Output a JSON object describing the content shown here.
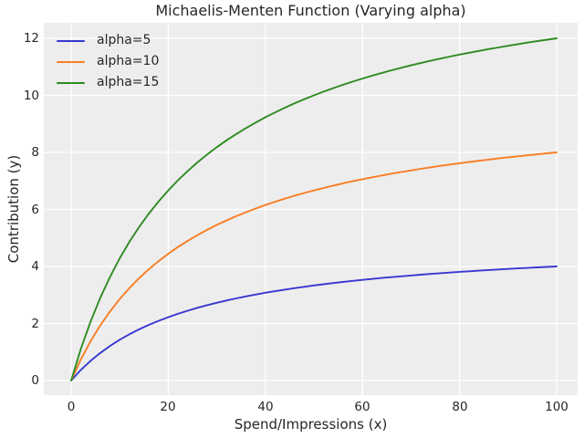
{
  "chart_data": {
    "type": "line",
    "title": "Michaelis-Menten Function (Varying alpha)",
    "xlabel": "Spend/Impressions (x)",
    "ylabel": "Contribution (y)",
    "xlim": [
      -5.64,
      104.32
    ],
    "ylim": [
      -0.512,
      12.544
    ],
    "xticks": [
      0,
      20,
      40,
      60,
      80,
      100
    ],
    "yticks": [
      0,
      2,
      4,
      6,
      8,
      10,
      12
    ],
    "grid": true,
    "legend_position": "upper left",
    "legend_frame": false,
    "style": {
      "axes_background": "#ededed",
      "grid_color": "#ffffff",
      "text_color": "#262626",
      "figure_background": "#ffffff"
    },
    "x": [
      0,
      2,
      4,
      6,
      8,
      10,
      12,
      14,
      16,
      18,
      20,
      22,
      24,
      26,
      28,
      30,
      32,
      34,
      36,
      38,
      40,
      42,
      44,
      46,
      48,
      50,
      52,
      54,
      56,
      58,
      60,
      62,
      64,
      66,
      68,
      70,
      72,
      74,
      76,
      78,
      80,
      82,
      84,
      86,
      88,
      90,
      92,
      94,
      96,
      98,
      100
    ],
    "series": [
      {
        "name": "alpha=5",
        "color": "#3838d1",
        "values": [
          0,
          0.37,
          0.69,
          0.968,
          1.212,
          1.429,
          1.622,
          1.795,
          1.951,
          2.093,
          2.222,
          2.34,
          2.449,
          2.549,
          2.642,
          2.727,
          2.807,
          2.881,
          2.951,
          3.016,
          3.077,
          3.134,
          3.188,
          3.239,
          3.288,
          3.333,
          3.377,
          3.418,
          3.457,
          3.494,
          3.529,
          3.563,
          3.596,
          3.626,
          3.656,
          3.684,
          3.711,
          3.737,
          3.762,
          3.786,
          3.81,
          3.832,
          3.853,
          3.874,
          3.894,
          3.913,
          3.932,
          3.95,
          3.967,
          3.984,
          4.0
        ]
      },
      {
        "name": "alpha=10",
        "color": "#f87d23",
        "values": [
          0,
          0.741,
          1.379,
          1.935,
          2.424,
          2.857,
          3.243,
          3.59,
          3.902,
          4.186,
          4.444,
          4.681,
          4.898,
          5.098,
          5.283,
          5.455,
          5.614,
          5.763,
          5.902,
          6.032,
          6.154,
          6.269,
          6.377,
          6.479,
          6.575,
          6.667,
          6.753,
          6.835,
          6.914,
          6.988,
          7.059,
          7.126,
          7.191,
          7.253,
          7.312,
          7.368,
          7.423,
          7.475,
          7.525,
          7.573,
          7.619,
          7.664,
          7.706,
          7.748,
          7.788,
          7.826,
          7.863,
          7.899,
          7.934,
          7.967,
          8.0
        ]
      },
      {
        "name": "alpha=15",
        "color": "#2f8b22",
        "values": [
          0,
          1.111,
          2.069,
          2.903,
          3.636,
          4.286,
          4.865,
          5.385,
          5.854,
          6.279,
          6.667,
          7.021,
          7.347,
          7.647,
          7.925,
          8.182,
          8.421,
          8.644,
          8.852,
          9.048,
          9.231,
          9.403,
          9.565,
          9.718,
          9.863,
          10.0,
          10.13,
          10.253,
          10.37,
          10.482,
          10.588,
          10.69,
          10.787,
          10.879,
          10.968,
          11.053,
          11.134,
          11.212,
          11.287,
          11.359,
          11.429,
          11.495,
          11.56,
          11.622,
          11.681,
          11.739,
          11.795,
          11.849,
          11.901,
          11.951,
          12.0
        ]
      }
    ]
  }
}
